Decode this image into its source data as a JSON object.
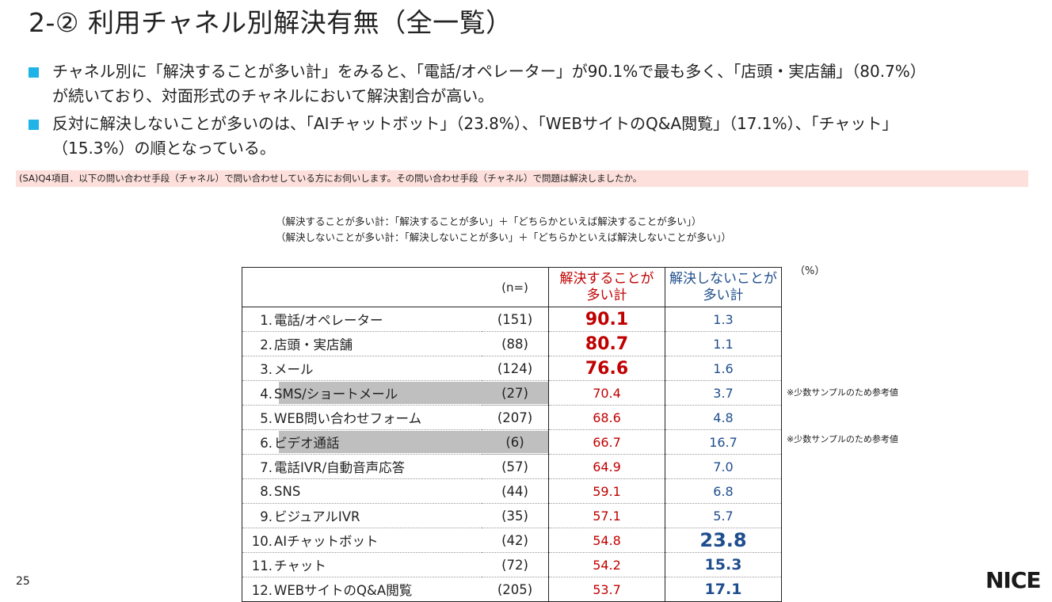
{
  "title": "2-② 利用チャネル別解決有無（全一覧）",
  "bullets": [
    {
      "line1": "チャネル別に「解決することが多い計」をみると、「電話/オペレーター」が90.1%で最も多く、「店頭・実店舗」（80.7%）",
      "line2": "が続いており、対面形式のチャネルにおいて解決割合が高い。"
    },
    {
      "line1": "反対に解決しないことが多いのは、「AIチャットボット」（23.8%）、「WEBサイトのQ&A閲覧」（17.1%）、「チャット」",
      "line2": "（15.3%）の順となっている。"
    }
  ],
  "question": "(SA)Q4項目．以下の問い合わせ手段（チャネル）で問い合わせしている方にお伺いします。その問い合わせ手段（チャネル）で問題は解決しましたか。",
  "notes": [
    "（解決することが多い計：「解決することが多い」＋「どちらかといえば解決することが多い」）",
    "（解決しないことが多い計：「解決しないことが多い」＋「どちらかといえば解決しないことが多い」）"
  ],
  "unit": "（%）",
  "table": {
    "header_n": "(n=)",
    "header_a_line1": "解決することが",
    "header_a_line2": "多い計",
    "header_b_line1": "解決しないことが",
    "header_b_line2": "多い計",
    "rows": [
      {
        "num": "1.",
        "name": "電話/オペレーター",
        "n": "(151)",
        "a": "90.1",
        "b": "1.3"
      },
      {
        "num": "2.",
        "name": "店頭・実店舗",
        "n": "(88)",
        "a": "80.7",
        "b": "1.1"
      },
      {
        "num": "3.",
        "name": "メール",
        "n": "(124)",
        "a": "76.6",
        "b": "1.6"
      },
      {
        "num": "4.",
        "name": "SMS/ショートメール",
        "n": "(27)",
        "a": "70.4",
        "b": "3.7"
      },
      {
        "num": "5.",
        "name": "WEB問い合わせフォーム",
        "n": "(207)",
        "a": "68.6",
        "b": "4.8"
      },
      {
        "num": "6.",
        "name": "ビデオ通話",
        "n": "(6)",
        "a": "66.7",
        "b": "16.7"
      },
      {
        "num": "7.",
        "name": "電話IVR/自動音声応答",
        "n": "(57)",
        "a": "64.9",
        "b": "7.0"
      },
      {
        "num": "8.",
        "name": "SNS",
        "n": "(44)",
        "a": "59.1",
        "b": "6.8"
      },
      {
        "num": "9.",
        "name": "ビジュアルIVR",
        "n": "(35)",
        "a": "57.1",
        "b": "5.7"
      },
      {
        "num": "10.",
        "name": "AIチャットボット",
        "n": "(42)",
        "a": "54.8",
        "b": "23.8"
      },
      {
        "num": "11.",
        "name": "チャット",
        "n": "(72)",
        "a": "54.2",
        "b": "15.3"
      },
      {
        "num": "12.",
        "name": "WEBサイトのQ&A閲覧",
        "n": "(205)",
        "a": "53.7",
        "b": "17.1"
      }
    ]
  },
  "side_notes": [
    "※少数サンプルのため参考値",
    "※少数サンプルのため参考値"
  ],
  "page_number": "25",
  "logo": "NICE",
  "colors": {
    "accent_blue": "#1fb3e8",
    "positive_red": "#c00000",
    "negative_blue": "#1f4e8c",
    "question_bg": "#fde0dc",
    "shade": "#bfbfbf"
  }
}
